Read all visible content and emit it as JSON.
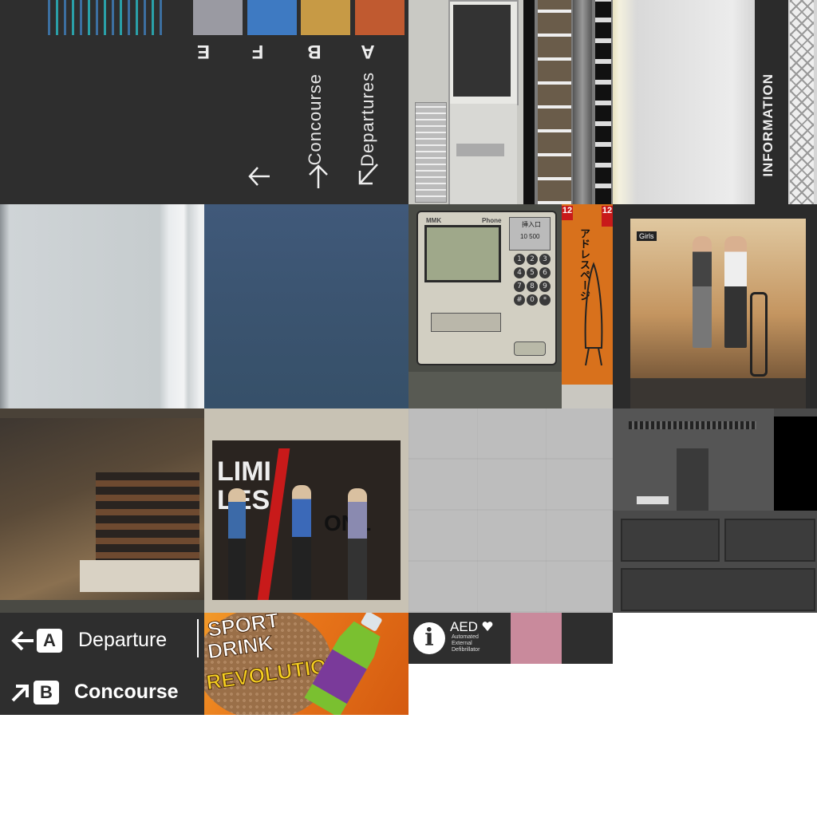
{
  "sign_vertical": {
    "letters": [
      "E",
      "F",
      "B",
      "A"
    ],
    "swatch_colors": [
      "#9a9aa2",
      "#3e7ac2",
      "#c79a45",
      "#c05a30"
    ],
    "concourse": "Concourse",
    "departures": "Departures"
  },
  "information_banner": {
    "label": "INFORMATION"
  },
  "payphone": {
    "brand": "MMK",
    "phone": "Phone",
    "coin_label": "挿入口",
    "coins": "10 500",
    "keys": [
      "1",
      "2",
      "3",
      "4",
      "5",
      "6",
      "7",
      "8",
      "9",
      "#",
      "0",
      "*"
    ]
  },
  "poster_12": {
    "number": "12",
    "title": "アドレスページ"
  },
  "shop_sign": {
    "label": "Girls"
  },
  "window_display": {
    "text_left": "LIMI",
    "text_left2": "LES",
    "text_right": "ONL"
  },
  "direction_sign": {
    "departure_letter": "A",
    "departure_label": "Departure",
    "concourse_letter": "B",
    "concourse_label": "Concourse"
  },
  "sport_drink": {
    "line1": "SPORT",
    "line2": "DRINK",
    "line3": "REVOLUTION!"
  },
  "aed_sign": {
    "title": "AED",
    "line1": "Automated",
    "line2": "External",
    "line3": "Defibrillator"
  },
  "colors": {
    "sign_dark": "#2e2e2e",
    "wall_blue": "#3b5470",
    "pink": "#c98a9c",
    "poster_orange": "#d8711c",
    "drink_orange": "#e8761a"
  }
}
